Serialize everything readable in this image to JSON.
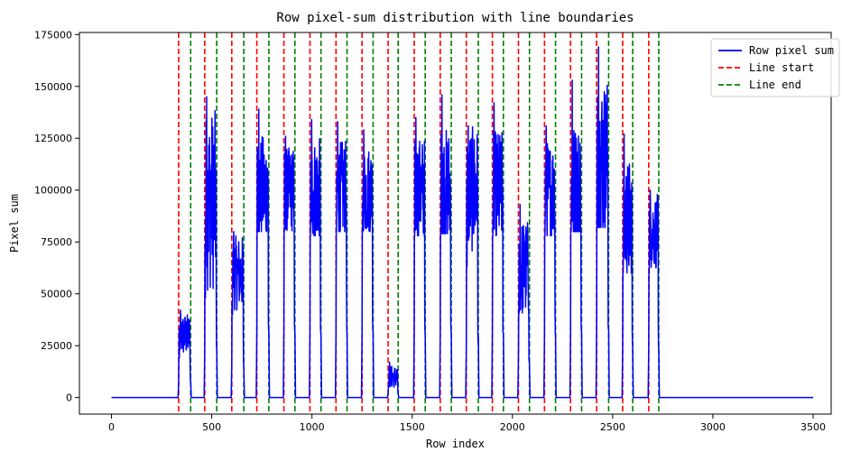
{
  "chart_data": {
    "type": "line",
    "title": "Row pixel-sum distribution with line boundaries",
    "xlabel": "Row index",
    "ylabel": "Pixel sum",
    "xlim": [
      -160,
      3590
    ],
    "ylim": [
      -8000,
      176000
    ],
    "xticks": [
      0,
      500,
      1000,
      1500,
      2000,
      2500,
      3000,
      3500
    ],
    "yticks": [
      0,
      25000,
      50000,
      75000,
      100000,
      125000,
      150000,
      175000
    ],
    "x_range": [
      0,
      3500
    ],
    "grid": false,
    "legend_position": "top-right",
    "colors": {
      "signal": "#0000ff",
      "start": "#ff0000",
      "end": "#008000"
    },
    "series": [
      {
        "name": "Row pixel sum",
        "style": "solid",
        "color": "#0000ff"
      },
      {
        "name": "Line start",
        "style": "dashed",
        "color": "#ff0000"
      },
      {
        "name": "Line end",
        "style": "dashed",
        "color": "#008000"
      }
    ],
    "line_segments": [
      {
        "start": 335,
        "end": 395,
        "base": 30000,
        "peak": 42000,
        "min": 19000
      },
      {
        "start": 465,
        "end": 525,
        "base": 95000,
        "peak": 145000,
        "min": 48000
      },
      {
        "start": 600,
        "end": 660,
        "base": 60000,
        "peak": 80000,
        "min": 40000
      },
      {
        "start": 725,
        "end": 785,
        "base": 100000,
        "peak": 139000,
        "min": 80000
      },
      {
        "start": 860,
        "end": 915,
        "base": 100000,
        "peak": 126000,
        "min": 80000
      },
      {
        "start": 990,
        "end": 1045,
        "base": 100000,
        "peak": 134000,
        "min": 78000
      },
      {
        "start": 1120,
        "end": 1175,
        "base": 100000,
        "peak": 133000,
        "min": 80000
      },
      {
        "start": 1250,
        "end": 1305,
        "base": 100000,
        "peak": 129000,
        "min": 80000
      },
      {
        "start": 1380,
        "end": 1430,
        "base": 10000,
        "peak": 17000,
        "min": 5000
      },
      {
        "start": 1510,
        "end": 1565,
        "base": 100000,
        "peak": 135000,
        "min": 78000
      },
      {
        "start": 1640,
        "end": 1695,
        "base": 100000,
        "peak": 146000,
        "min": 79000
      },
      {
        "start": 1770,
        "end": 1830,
        "base": 100000,
        "peak": 131000,
        "min": 63000
      },
      {
        "start": 1900,
        "end": 1955,
        "base": 100000,
        "peak": 142000,
        "min": 78000
      },
      {
        "start": 2030,
        "end": 2085,
        "base": 62000,
        "peak": 93000,
        "min": 40000
      },
      {
        "start": 2160,
        "end": 2215,
        "base": 100000,
        "peak": 131000,
        "min": 78000
      },
      {
        "start": 2290,
        "end": 2345,
        "base": 100000,
        "peak": 153000,
        "min": 80000
      },
      {
        "start": 2420,
        "end": 2480,
        "base": 115000,
        "peak": 169000,
        "min": 82000
      },
      {
        "start": 2550,
        "end": 2600,
        "base": 85000,
        "peak": 127000,
        "min": 60000
      },
      {
        "start": 2680,
        "end": 2730,
        "base": 80000,
        "peak": 100000,
        "min": 60000
      }
    ]
  }
}
